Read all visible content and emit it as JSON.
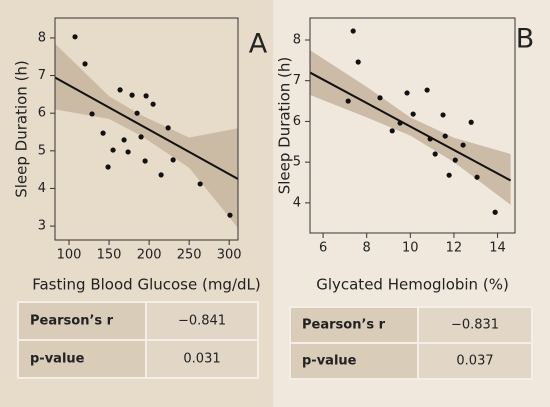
{
  "chart_data": [
    {
      "type": "scatter",
      "panel_label": "A",
      "xlabel": "Fasting Blood Glucose (mg/dL)",
      "ylabel": "Sleep Duration (h)",
      "xlim": [
        82.5,
        311
      ],
      "ylim": [
        2.63,
        8.53
      ],
      "xticks": [
        100,
        150,
        200,
        250,
        300
      ],
      "yticks": [
        3,
        4,
        5,
        6,
        7,
        8
      ],
      "color": "#111111",
      "x": [
        107.5,
        120,
        128.75,
        142.5,
        148.75,
        155,
        163.75,
        168.75,
        173.75,
        178.75,
        185,
        190,
        196.25,
        195,
        205,
        215,
        223.75,
        230,
        263.75,
        301
      ],
      "values": [
        8.03,
        7.31,
        5.98,
        5.47,
        4.57,
        5.02,
        6.62,
        5.29,
        4.97,
        6.48,
        6.0,
        5.37,
        6.46,
        4.73,
        6.24,
        4.36,
        5.61,
        4.76,
        4.12,
        3.29
      ],
      "fit": {
        "x": [
          82.5,
          311
        ],
        "y": [
          6.95,
          4.25
        ]
      },
      "band": {
        "x": [
          82.5,
          150,
          190,
          250,
          311
        ],
        "upper": [
          7.85,
          6.45,
          5.95,
          5.35,
          5.6
        ],
        "lower": [
          6.1,
          5.85,
          5.4,
          4.55,
          2.95
        ]
      },
      "table": {
        "rows": [
          [
            "Pearson’s r",
            "−0.841"
          ],
          [
            "p-value",
            "0.031"
          ]
        ]
      }
    },
    {
      "type": "scatter",
      "panel_label": "B",
      "xlabel": "Glycated Hemoglobin (%)",
      "ylabel": "Sleep Duration (h)",
      "xlim": [
        5.4,
        14.8
      ],
      "ylim": [
        3.26,
        8.54
      ],
      "xticks": [
        6,
        8,
        10,
        12,
        14
      ],
      "yticks": [
        4,
        5,
        6,
        7,
        8
      ],
      "color": "#111111",
      "x": [
        7.38,
        7.61,
        7.15,
        8.61,
        9.17,
        9.53,
        9.85,
        10.13,
        10.77,
        10.91,
        11.14,
        11.5,
        11.6,
        11.78,
        12.06,
        12.42,
        12.79,
        13.06,
        13.89
      ],
      "values": [
        8.22,
        7.46,
        6.5,
        6.58,
        5.77,
        5.96,
        6.7,
        6.18,
        6.77,
        5.57,
        5.2,
        6.16,
        5.64,
        4.68,
        5.05,
        5.42,
        5.98,
        4.63,
        3.77
      ],
      "fit": {
        "x": [
          5.4,
          14.6
        ],
        "y": [
          7.2,
          4.55
        ]
      },
      "band": {
        "x": [
          5.4,
          8,
          10,
          12,
          14.6
        ],
        "upper": [
          7.75,
          6.85,
          6.1,
          5.6,
          5.2
        ],
        "lower": [
          6.65,
          6.1,
          5.65,
          5.0,
          3.95
        ]
      },
      "table": {
        "rows": [
          [
            "Pearson’s r",
            "−0.831"
          ],
          [
            "p-value",
            "0.037"
          ]
        ]
      }
    }
  ]
}
